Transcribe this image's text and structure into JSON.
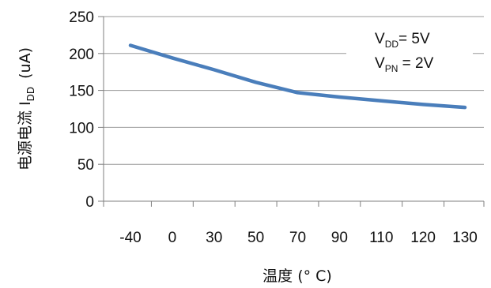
{
  "chart_data": {
    "type": "line",
    "categories": [
      "-40",
      "0",
      "30",
      "50",
      "70",
      "90",
      "110",
      "120",
      "130"
    ],
    "series": [
      {
        "values": [
          211,
          194,
          178,
          161,
          147,
          141,
          136,
          131,
          127
        ],
        "color": "#4a7ebb"
      }
    ],
    "xlabel": "温度 (° C)",
    "ylabel_main": "电源电流 I",
    "ylabel_sub": "DD",
    "ylabel_unit": "(uA)",
    "ylim": [
      0,
      250
    ],
    "yticks": [
      "0",
      "50",
      "100",
      "150",
      "200",
      "250"
    ],
    "grid": true,
    "annotation": {
      "line1_main": "V",
      "line1_sub": "DD",
      "line1_rest": "= 5V",
      "line2_main": "V",
      "line2_sub": "PN",
      "line2_rest": " = 2V"
    }
  }
}
